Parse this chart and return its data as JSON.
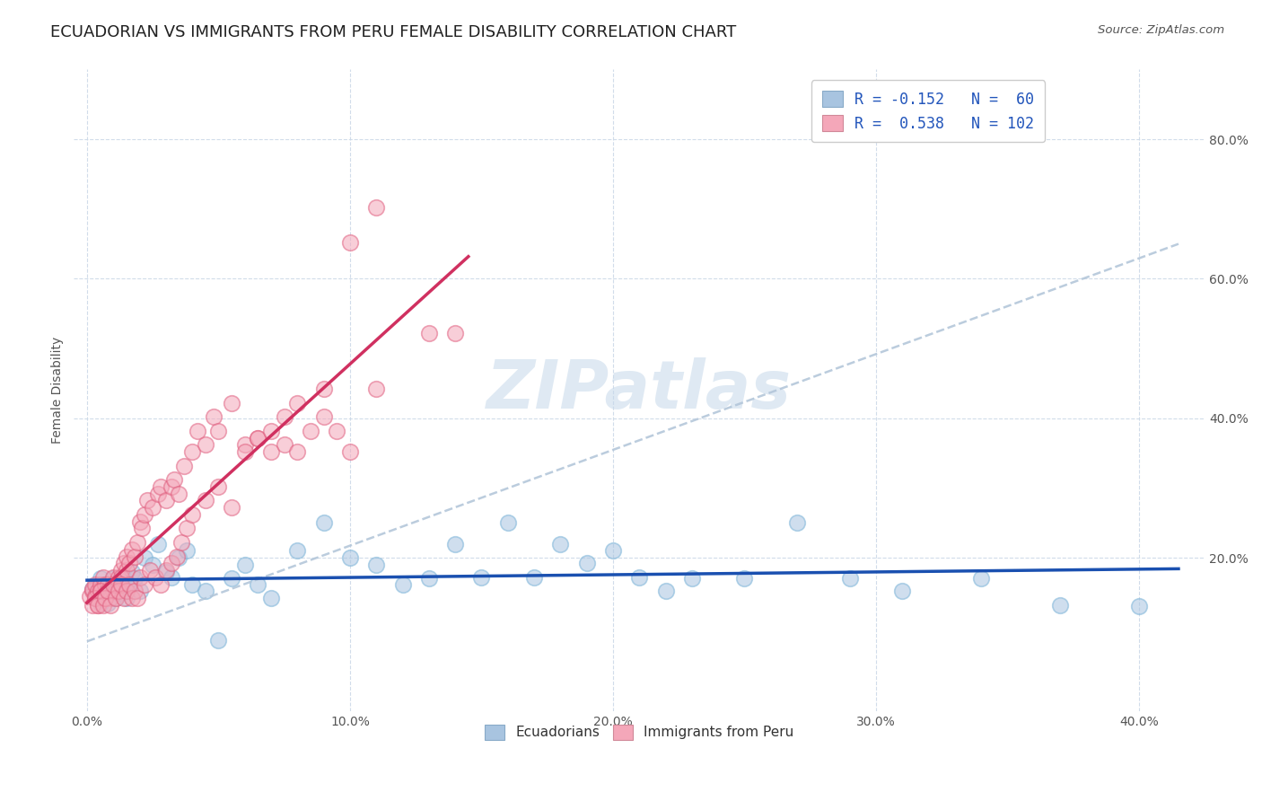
{
  "title": "ECUADORIAN VS IMMIGRANTS FROM PERU FEMALE DISABILITY CORRELATION CHART",
  "source": "Source: ZipAtlas.com",
  "ylabel": "Female Disability",
  "x_tick_vals": [
    0.0,
    0.1,
    0.2,
    0.3,
    0.4
  ],
  "y_tick_vals": [
    0.2,
    0.4,
    0.6,
    0.8
  ],
  "xlim": [
    -0.005,
    0.425
  ],
  "ylim": [
    -0.02,
    0.9
  ],
  "legend_entries": [
    {
      "label": "R = -0.152   N =  60",
      "color": "#a8c4e0"
    },
    {
      "label": "R =  0.538   N = 102",
      "color": "#f4a7b9"
    }
  ],
  "legend_bottom": [
    "Ecuadorians",
    "Immigrants from Peru"
  ],
  "ecuadorians_facecolor": "#a8c4e0",
  "ecuadorians_edgecolor": "#7ab3d8",
  "peru_facecolor": "#f4a7b9",
  "peru_edgecolor": "#e06080",
  "blue_line_color": "#1a50b0",
  "pink_line_color": "#d03060",
  "dashed_line_color": "#b0c4d8",
  "watermark": "ZIPatlas",
  "background_color": "#ffffff",
  "grid_color": "#ccd9e8",
  "title_color": "#202020",
  "title_fontsize": 13,
  "ecuadorians_x": [
    0.002,
    0.003,
    0.004,
    0.005,
    0.005,
    0.006,
    0.007,
    0.007,
    0.008,
    0.008,
    0.009,
    0.01,
    0.01,
    0.011,
    0.012,
    0.013,
    0.014,
    0.015,
    0.015,
    0.016,
    0.017,
    0.018,
    0.02,
    0.022,
    0.025,
    0.027,
    0.03,
    0.032,
    0.035,
    0.038,
    0.04,
    0.045,
    0.05,
    0.055,
    0.06,
    0.065,
    0.07,
    0.08,
    0.09,
    0.1,
    0.11,
    0.12,
    0.13,
    0.14,
    0.15,
    0.16,
    0.17,
    0.18,
    0.19,
    0.2,
    0.21,
    0.22,
    0.23,
    0.25,
    0.27,
    0.29,
    0.31,
    0.34,
    0.37,
    0.4
  ],
  "ecuadorians_y": [
    0.155,
    0.145,
    0.16,
    0.135,
    0.17,
    0.15,
    0.145,
    0.16,
    0.15,
    0.135,
    0.162,
    0.17,
    0.152,
    0.142,
    0.16,
    0.15,
    0.17,
    0.152,
    0.142,
    0.16,
    0.18,
    0.17,
    0.152,
    0.2,
    0.19,
    0.22,
    0.18,
    0.172,
    0.2,
    0.21,
    0.162,
    0.152,
    0.082,
    0.17,
    0.19,
    0.162,
    0.142,
    0.21,
    0.25,
    0.2,
    0.19,
    0.162,
    0.17,
    0.22,
    0.172,
    0.25,
    0.172,
    0.22,
    0.192,
    0.21,
    0.172,
    0.152,
    0.17,
    0.17,
    0.25,
    0.17,
    0.152,
    0.17,
    0.132,
    0.13
  ],
  "peru_x": [
    0.001,
    0.002,
    0.002,
    0.003,
    0.003,
    0.004,
    0.004,
    0.005,
    0.005,
    0.006,
    0.006,
    0.007,
    0.007,
    0.008,
    0.008,
    0.009,
    0.009,
    0.01,
    0.01,
    0.011,
    0.011,
    0.012,
    0.012,
    0.013,
    0.013,
    0.014,
    0.015,
    0.015,
    0.016,
    0.017,
    0.018,
    0.019,
    0.02,
    0.021,
    0.022,
    0.023,
    0.025,
    0.027,
    0.028,
    0.03,
    0.032,
    0.033,
    0.035,
    0.037,
    0.04,
    0.042,
    0.045,
    0.048,
    0.05,
    0.055,
    0.06,
    0.065,
    0.07,
    0.075,
    0.08,
    0.085,
    0.09,
    0.095,
    0.1,
    0.11,
    0.13,
    0.14,
    0.002,
    0.003,
    0.004,
    0.005,
    0.006,
    0.007,
    0.008,
    0.009,
    0.01,
    0.011,
    0.012,
    0.013,
    0.014,
    0.015,
    0.016,
    0.017,
    0.018,
    0.019,
    0.02,
    0.022,
    0.024,
    0.026,
    0.028,
    0.03,
    0.032,
    0.034,
    0.036,
    0.038,
    0.04,
    0.045,
    0.05,
    0.055,
    0.06,
    0.065,
    0.07,
    0.075,
    0.08,
    0.09,
    0.1,
    0.11
  ],
  "peru_y": [
    0.145,
    0.152,
    0.155,
    0.145,
    0.162,
    0.152,
    0.132,
    0.162,
    0.152,
    0.142,
    0.172,
    0.162,
    0.142,
    0.152,
    0.162,
    0.152,
    0.142,
    0.172,
    0.152,
    0.162,
    0.152,
    0.172,
    0.162,
    0.182,
    0.172,
    0.192,
    0.182,
    0.202,
    0.192,
    0.212,
    0.202,
    0.222,
    0.252,
    0.242,
    0.262,
    0.282,
    0.272,
    0.292,
    0.302,
    0.282,
    0.302,
    0.312,
    0.292,
    0.332,
    0.352,
    0.382,
    0.362,
    0.402,
    0.382,
    0.422,
    0.362,
    0.372,
    0.352,
    0.362,
    0.352,
    0.382,
    0.402,
    0.382,
    0.352,
    0.442,
    0.522,
    0.522,
    0.132,
    0.142,
    0.132,
    0.152,
    0.132,
    0.142,
    0.152,
    0.132,
    0.162,
    0.142,
    0.152,
    0.162,
    0.142,
    0.152,
    0.162,
    0.142,
    0.152,
    0.142,
    0.172,
    0.162,
    0.182,
    0.172,
    0.162,
    0.182,
    0.192,
    0.202,
    0.222,
    0.242,
    0.262,
    0.282,
    0.302,
    0.272,
    0.352,
    0.372,
    0.382,
    0.402,
    0.422,
    0.442,
    0.652,
    0.702
  ]
}
